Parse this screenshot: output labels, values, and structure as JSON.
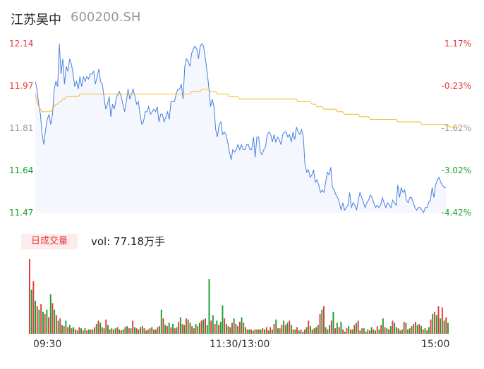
{
  "header": {
    "name": "江苏吴中",
    "code": "600200.SH"
  },
  "price_axis": {
    "left_labels": [
      "12.14",
      "11.97",
      "11.81",
      "11.64",
      "11.47"
    ],
    "right_labels": [
      "1.17%",
      "-0.23%",
      "-1.62%",
      "-3.02%",
      "-4.42%"
    ],
    "label_colors": [
      "#e4393c",
      "#e4393c",
      "#999999",
      "#1a9e2e",
      "#1a9e2e"
    ]
  },
  "volume": {
    "badge": "日成交量",
    "text": "vol: 77.18万手"
  },
  "time_axis": {
    "labels": [
      "09:30",
      "11:30/13:00",
      "15:00"
    ]
  },
  "colors": {
    "price_line": "#4a7fe0",
    "avg_line": "#f5b820",
    "up": "#e4393c",
    "down": "#1a9e2e",
    "area": "#f4f7fd"
  },
  "chart_data": [
    {
      "type": "line",
      "title": "",
      "xlabel": "",
      "ylabel": "",
      "ylim": [
        11.47,
        12.14
      ],
      "x_ticks": [
        "09:30",
        "11:30/13:00",
        "15:00"
      ],
      "series": [
        {
          "values": [
            11.99,
            11.96,
            11.9,
            11.86,
            11.78,
            11.74,
            11.8,
            11.84,
            11.86,
            11.82,
            11.86,
            11.96,
            11.99,
            11.97,
            12.14,
            12.02,
            12.08,
            11.98,
            12.05,
            12.03,
            12.08,
            12.06,
            12.02,
            11.97,
            11.99,
            11.96,
            12.01,
            11.97,
            12.01,
            11.99,
            12.01,
            12.0,
            12.02,
            12.02,
            12.03,
            11.98,
            12.01,
            12.04,
            11.99,
            11.98,
            11.93,
            11.88,
            11.9,
            11.93,
            11.85,
            11.9,
            11.88,
            11.92,
            11.94,
            11.95,
            11.93,
            11.9,
            11.87,
            11.91,
            11.96,
            11.92,
            11.94,
            11.96,
            11.93,
            11.9,
            11.91,
            11.86,
            11.82,
            11.83,
            11.87,
            11.87,
            11.89,
            11.86,
            11.87,
            11.88,
            11.87,
            11.89,
            11.83,
            11.86,
            11.86,
            11.83,
            11.85,
            11.87,
            11.84,
            11.91,
            11.91,
            11.91,
            11.94,
            11.96,
            11.96,
            11.98,
            11.92,
            12.05,
            12.08,
            12.07,
            12.05,
            12.1,
            12.12,
            12.13,
            12.12,
            12.08,
            12.13,
            12.14,
            12.13,
            12.08,
            12.03,
            11.97,
            11.89,
            11.92,
            11.89,
            11.8,
            11.77,
            11.82,
            11.83,
            11.78,
            11.79,
            11.78,
            11.75,
            11.71,
            11.68,
            11.72,
            11.71,
            11.72,
            11.74,
            11.72,
            11.74,
            11.72,
            11.72,
            11.74,
            11.74,
            11.72,
            11.72,
            11.77,
            11.69,
            11.77,
            11.77,
            11.71,
            11.7,
            11.72,
            11.73,
            11.78,
            11.79,
            11.78,
            11.75,
            11.78,
            11.75,
            11.77,
            11.76,
            11.74,
            11.78,
            11.79,
            11.79,
            11.77,
            11.78,
            11.75,
            11.79,
            11.76,
            11.81,
            11.79,
            11.78,
            11.8,
            11.77,
            11.66,
            11.63,
            11.64,
            11.61,
            11.62,
            11.64,
            11.59,
            11.6,
            11.58,
            11.55,
            11.56,
            11.55,
            11.59,
            11.63,
            11.62,
            11.65,
            11.57,
            11.56,
            11.54,
            11.53,
            11.51,
            11.48,
            11.51,
            11.48,
            11.49,
            11.5,
            11.55,
            11.49,
            11.51,
            11.5,
            11.48,
            11.52,
            11.55,
            11.53,
            11.51,
            11.49,
            11.51,
            11.52,
            11.54,
            11.53,
            11.51,
            11.49,
            11.5,
            11.49,
            11.5,
            11.53,
            11.51,
            11.49,
            11.51,
            11.5,
            11.49,
            11.52,
            11.51,
            11.5,
            11.58,
            11.53,
            11.57,
            11.55,
            11.56,
            11.52,
            11.51,
            11.53,
            11.53,
            11.51,
            11.49,
            11.48,
            11.49,
            11.49,
            11.48,
            11.47,
            11.49,
            11.49,
            11.51,
            11.52,
            11.57,
            11.53,
            11.58,
            11.6,
            11.61,
            11.59,
            11.58,
            11.57,
            11.57
          ]
        },
        {
          "values": [
            11.94,
            11.91,
            11.89,
            11.88,
            11.87,
            11.87,
            11.87,
            11.87,
            11.87,
            11.87,
            11.88,
            11.89,
            11.9,
            11.9,
            11.91,
            11.91,
            11.92,
            11.92,
            11.93,
            11.93,
            11.93,
            11.93,
            11.93,
            11.93,
            11.93,
            11.93,
            11.94,
            11.94,
            11.94,
            11.94,
            11.94,
            11.94,
            11.94,
            11.94,
            11.94,
            11.94,
            11.94,
            11.94,
            11.94,
            11.94,
            11.94,
            11.94,
            11.94,
            11.94,
            11.94,
            11.94,
            11.94,
            11.94,
            11.94,
            11.94,
            11.94,
            11.94,
            11.94,
            11.94,
            11.94,
            11.94,
            11.94,
            11.94,
            11.94,
            11.94,
            11.94,
            11.94,
            11.94,
            11.94,
            11.94,
            11.94,
            11.94,
            11.94,
            11.94,
            11.94,
            11.94,
            11.94,
            11.94,
            11.94,
            11.94,
            11.94,
            11.94,
            11.94,
            11.94,
            11.94,
            11.94,
            11.94,
            11.94,
            11.94,
            11.94,
            11.94,
            11.94,
            11.94,
            11.94,
            11.94,
            11.94,
            11.95,
            11.95,
            11.95,
            11.95,
            11.95,
            11.95,
            11.96,
            11.96,
            11.96,
            11.96,
            11.96,
            11.95,
            11.95,
            11.95,
            11.95,
            11.94,
            11.94,
            11.94,
            11.94,
            11.94,
            11.94,
            11.94,
            11.93,
            11.93,
            11.93,
            11.93,
            11.93,
            11.93,
            11.92,
            11.92,
            11.92,
            11.92,
            11.92,
            11.92,
            11.92,
            11.92,
            11.92,
            11.92,
            11.92,
            11.92,
            11.92,
            11.92,
            11.92,
            11.92,
            11.92,
            11.92,
            11.92,
            11.92,
            11.92,
            11.92,
            11.92,
            11.92,
            11.92,
            11.92,
            11.92,
            11.92,
            11.92,
            11.92,
            11.92,
            11.92,
            11.92,
            11.92,
            11.91,
            11.91,
            11.91,
            11.91,
            11.91,
            11.91,
            11.91,
            11.91,
            11.9,
            11.9,
            11.9,
            11.89,
            11.89,
            11.89,
            11.89,
            11.88,
            11.88,
            11.88,
            11.88,
            11.88,
            11.88,
            11.88,
            11.88,
            11.87,
            11.87,
            11.87,
            11.87,
            11.86,
            11.86,
            11.86,
            11.86,
            11.86,
            11.86,
            11.86,
            11.86,
            11.86,
            11.85,
            11.85,
            11.85,
            11.85,
            11.85,
            11.85,
            11.84,
            11.84,
            11.84,
            11.84,
            11.84,
            11.84,
            11.84,
            11.84,
            11.84,
            11.84,
            11.84,
            11.84,
            11.84,
            11.84,
            11.84,
            11.84,
            11.83,
            11.83,
            11.83,
            11.83,
            11.83,
            11.83,
            11.83,
            11.83,
            11.83,
            11.83,
            11.83,
            11.83,
            11.83,
            11.83,
            11.82,
            11.82,
            11.82,
            11.82,
            11.82,
            11.82,
            11.82,
            11.82,
            11.82,
            11.82,
            11.82,
            11.82,
            11.82,
            11.82,
            11.82,
            11.82,
            11.81,
            11.81,
            11.81,
            11.81,
            11.81,
            11.81,
            11.81
          ]
        }
      ]
    },
    {
      "type": "bar",
      "title": "",
      "series": [
        {
          "values": [
            68,
            40,
            48,
            30,
            25,
            22,
            27,
            20,
            18,
            22,
            15,
            36,
            28,
            22,
            17,
            12,
            14,
            8,
            7,
            12,
            6,
            8,
            5,
            6,
            4,
            3,
            6,
            5,
            3,
            5,
            3,
            4,
            4,
            4,
            6,
            9,
            12,
            10,
            6,
            5,
            13,
            8,
            4,
            5,
            4,
            5,
            6,
            4,
            3,
            4,
            6,
            7,
            5,
            5,
            12,
            6,
            5,
            4,
            6,
            7,
            5,
            3,
            4,
            5,
            6,
            4,
            4,
            6,
            7,
            22,
            14,
            8,
            7,
            10,
            6,
            9,
            5,
            6,
            11,
            15,
            9,
            8,
            14,
            13,
            10,
            7,
            5,
            9,
            7,
            10,
            12,
            13,
            14,
            8,
            50,
            12,
            17,
            9,
            12,
            8,
            11,
            26,
            14,
            9,
            7,
            6,
            10,
            14,
            9,
            7,
            11,
            15,
            10,
            6,
            4,
            4,
            4,
            3,
            4,
            4,
            4,
            4,
            5,
            4,
            6,
            3,
            6,
            4,
            9,
            13,
            5,
            5,
            8,
            12,
            8,
            10,
            12,
            8,
            4,
            4,
            6,
            3,
            4,
            2,
            4,
            6,
            12,
            7,
            4,
            5,
            6,
            8,
            18,
            22,
            25,
            6,
            4,
            8,
            12,
            20,
            5,
            10,
            6,
            11,
            4,
            2,
            5,
            7,
            4,
            4,
            8,
            10,
            12,
            3,
            5,
            5,
            2,
            4,
            3,
            6,
            4,
            3,
            7,
            4,
            8,
            14,
            6,
            5,
            4,
            7,
            12,
            10,
            6,
            5,
            3,
            4,
            11,
            10,
            4,
            5,
            7,
            9,
            11,
            8,
            9,
            7,
            4,
            5,
            3,
            6,
            13,
            18,
            20,
            17,
            25,
            14,
            24,
            12,
            15,
            10
          ]
        }
      ],
      "up_down": [
        1,
        0,
        1,
        0,
        1,
        0,
        1,
        0,
        1,
        0,
        1,
        0,
        1,
        0,
        1,
        0,
        1,
        0,
        1,
        0,
        1,
        0,
        1,
        0,
        1,
        0,
        1,
        0,
        1,
        0,
        1,
        0,
        1,
        0,
        1,
        0,
        1,
        0,
        1,
        0,
        1,
        0,
        1,
        0,
        1,
        0,
        1,
        0,
        1,
        0,
        1,
        0,
        1,
        0,
        1,
        0,
        1,
        0,
        1,
        0,
        1,
        0,
        1,
        0,
        1,
        0,
        1,
        0,
        1,
        0,
        1,
        0,
        1,
        0,
        1,
        0,
        1,
        0,
        1,
        0,
        1,
        0,
        1,
        0,
        1,
        0,
        1,
        0,
        1,
        0,
        1,
        0,
        1,
        0,
        0,
        1,
        0,
        1,
        0,
        1,
        0,
        0,
        1,
        0,
        1,
        0,
        1,
        0,
        1,
        0,
        1,
        0,
        1,
        0,
        1,
        0,
        1,
        0,
        1,
        0,
        1,
        0,
        1,
        0,
        1,
        0,
        1,
        0,
        1,
        0,
        1,
        0,
        1,
        0,
        1,
        0,
        1,
        0,
        1,
        0,
        1,
        0,
        1,
        0,
        1,
        0,
        1,
        0,
        1,
        0,
        1,
        0,
        1,
        0,
        1,
        0,
        1,
        0,
        1,
        0,
        1,
        0,
        1,
        0,
        1,
        0,
        1,
        0,
        1,
        0,
        1,
        0,
        1,
        0,
        1,
        0,
        1,
        0,
        1,
        0,
        1,
        0,
        1,
        0,
        1,
        0,
        1,
        0,
        1,
        0,
        1,
        0,
        1,
        0,
        1,
        0,
        1,
        0,
        1,
        0,
        1,
        0,
        1,
        0,
        1,
        0,
        1,
        0,
        1,
        0,
        1,
        0,
        1,
        0,
        1,
        0,
        1,
        0,
        1,
        0,
        1,
        0,
        1,
        0,
        1,
        0,
        1,
        0,
        1,
        0,
        1,
        0,
        1,
        0,
        1
      ]
    }
  ]
}
